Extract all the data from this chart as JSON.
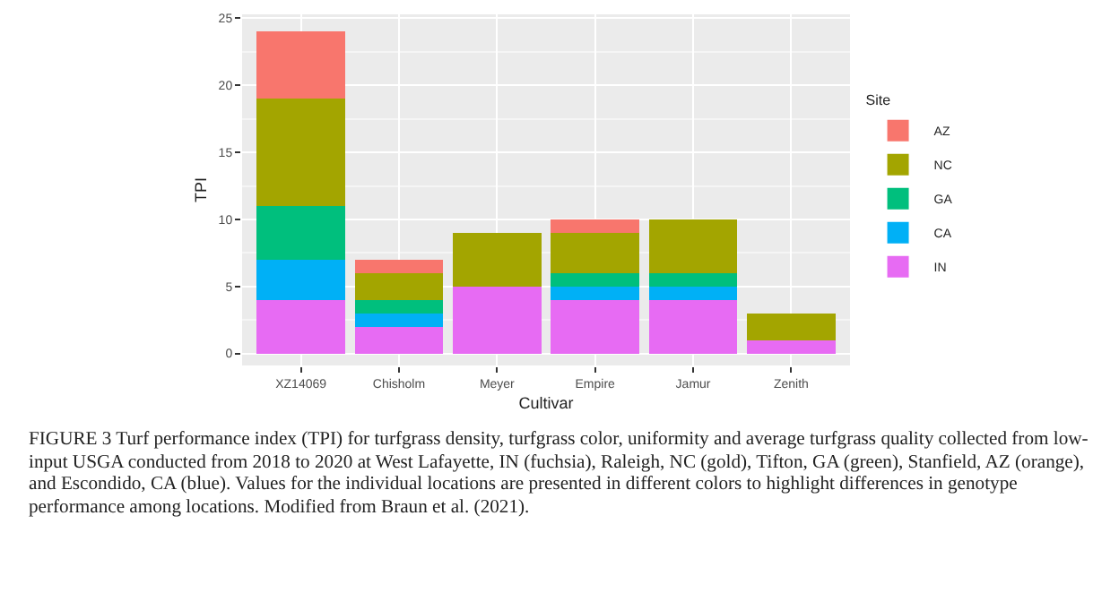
{
  "chart_data": {
    "type": "bar",
    "stacked": true,
    "xlabel": "Cultivar",
    "ylabel": "TPI",
    "legend_title": "Site",
    "legend": "right",
    "grid": true,
    "categories": [
      "XZ14069",
      "Chisholm",
      "Meyer",
      "Empire",
      "Jamur",
      "Zenith"
    ],
    "series": [
      {
        "name": "IN",
        "color": "#e76bf3",
        "values": [
          4,
          2,
          5,
          4,
          4,
          1
        ]
      },
      {
        "name": "CA",
        "color": "#00b0f6",
        "values": [
          3,
          1,
          0,
          1,
          1,
          0
        ]
      },
      {
        "name": "GA",
        "color": "#00bf7d",
        "values": [
          4,
          1,
          0,
          1,
          1,
          0
        ]
      },
      {
        "name": "NC",
        "color": "#a3a500",
        "values": [
          8,
          2,
          4,
          3,
          4,
          2
        ]
      },
      {
        "name": "AZ",
        "color": "#f8766d",
        "values": [
          5,
          1,
          0,
          1,
          0,
          0
        ]
      }
    ],
    "ylim": [
      -0.9,
      25.3
    ],
    "yticks": [
      0,
      5,
      10,
      15,
      20,
      25
    ],
    "annotations": [
      "FIGURE 3 Turf performance index (TPI) for turfgrass density, turfgrass color, uniformity and average turfgrass quality collected from low-input USGA conducted from 2018 to 2020 at West Lafayette, IN (fuchsia), Raleigh, NC (gold), Tifton, GA (green), Stanfield, AZ (orange), and Escondido, CA (blue). Values for the individual locations are presented in different colors to highlight differences in genotype performance among locations. Modified from Braun et al. (2021)."
    ]
  }
}
